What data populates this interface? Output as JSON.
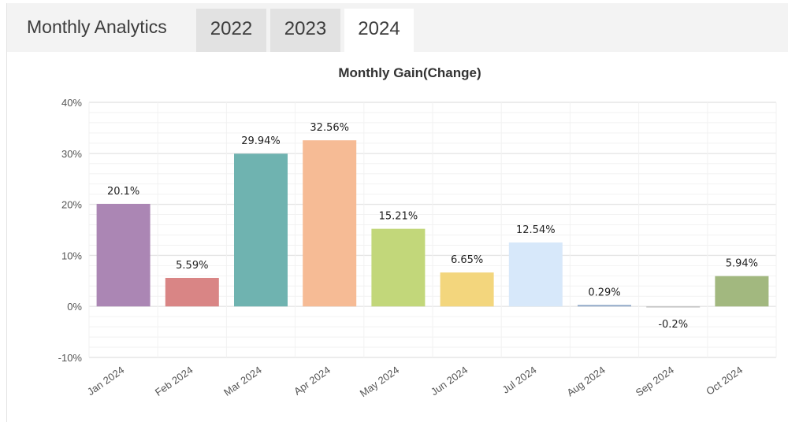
{
  "header": {
    "title": "Monthly Analytics",
    "tabs": [
      {
        "label": "2022",
        "active": false
      },
      {
        "label": "2023",
        "active": false
      },
      {
        "label": "2024",
        "active": true
      }
    ]
  },
  "colors": {
    "header_bg": "#f3f3f3",
    "tab_bg": "#e2e2e2",
    "tab_active_bg": "#ffffff",
    "grid_major": "#e6e6e6",
    "grid_minor": "#f2f2f2"
  },
  "chart_data": {
    "type": "bar",
    "title": "Monthly Gain(Change)",
    "xlabel": "",
    "ylabel": "",
    "ylim": [
      -10,
      40
    ],
    "yticks": [
      40,
      30,
      20,
      10,
      0,
      -10
    ],
    "ytick_labels": [
      "40%",
      "30%",
      "20%",
      "10%",
      "0%",
      "-10%"
    ],
    "grid": true,
    "categories": [
      "Jan 2024",
      "Feb 2024",
      "Mar 2024",
      "Apr 2024",
      "May 2024",
      "Jun 2024",
      "Jul 2024",
      "Aug 2024",
      "Sep 2024",
      "Oct 2024"
    ],
    "values": [
      20.1,
      5.59,
      29.94,
      32.56,
      15.21,
      6.65,
      12.54,
      0.29,
      -0.2,
      5.94
    ],
    "value_labels": [
      "20.1%",
      "5.59%",
      "29.94%",
      "32.56%",
      "15.21%",
      "6.65%",
      "12.54%",
      "0.29%",
      "-0.2%",
      "5.94%"
    ],
    "bar_colors": [
      "#ab86b4",
      "#d98585",
      "#6fb3b0",
      "#f6bb95",
      "#c2d77a",
      "#f3d67d",
      "#d7e8fa",
      "#8fa8c8",
      "#bbbbbb",
      "#a2b87f"
    ]
  }
}
